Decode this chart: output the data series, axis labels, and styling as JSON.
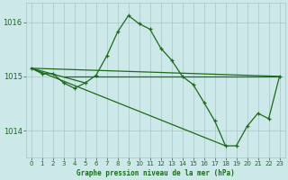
{
  "title": "Graphe pression niveau de la mer (hPa)",
  "background_color": "#cce8e8",
  "grid_color": "#99cccc",
  "line_color": "#1a6b1a",
  "xlim": [
    -0.5,
    23.5
  ],
  "ylim": [
    1013.5,
    1016.35
  ],
  "yticks": [
    1014.0,
    1015.0,
    1016.0
  ],
  "ytick_labels": [
    "1014",
    "1015",
    "1016"
  ],
  "xticks": [
    0,
    1,
    2,
    3,
    4,
    5,
    6,
    7,
    8,
    9,
    10,
    11,
    12,
    13,
    14,
    15,
    16,
    17,
    18,
    19,
    20,
    21,
    22,
    23
  ],
  "series_main": {
    "x": [
      0,
      1,
      2,
      3,
      4,
      5,
      6,
      7,
      8,
      9,
      10,
      11,
      12,
      13,
      14,
      15,
      16,
      17,
      18,
      19,
      20,
      21,
      22,
      23
    ],
    "y": [
      1015.15,
      1015.05,
      1015.05,
      1014.88,
      1014.78,
      1014.88,
      1015.02,
      1015.38,
      1015.82,
      1016.12,
      1015.97,
      1015.87,
      1015.52,
      1015.3,
      1015.0,
      1014.85,
      1014.52,
      1014.18,
      1013.72,
      1013.72,
      1014.08,
      1014.32,
      1014.22,
      1015.0
    ]
  },
  "series_flat": {
    "x": [
      3,
      23
    ],
    "y": [
      1015.0,
      1015.0
    ]
  },
  "series_diag1": {
    "x": [
      0,
      23
    ],
    "y": [
      1015.15,
      1015.0
    ]
  },
  "series_diag2": {
    "x": [
      0,
      18
    ],
    "y": [
      1015.15,
      1013.72
    ]
  },
  "series_cross": {
    "x": [
      0,
      5
    ],
    "y": [
      1015.15,
      1014.88
    ]
  }
}
